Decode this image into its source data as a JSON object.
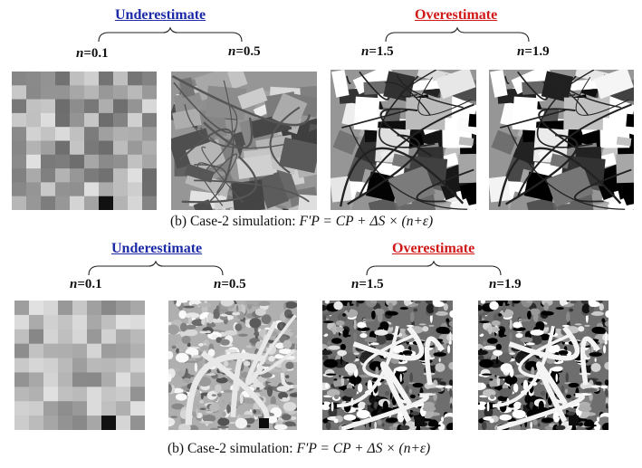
{
  "rows": [
    {
      "underestimate_label": "Underestimate",
      "overestimate_label": "Overestimate",
      "n_labels": [
        "0.1",
        "0.5",
        "1.5",
        "1.9"
      ],
      "caption_prefix": "(b) Case-2 simulation: ",
      "caption_formula_lhs": "F′P",
      "caption_formula_rhs": "= CP + ΔS × (n+ε)"
    },
    {
      "underestimate_label": "Underestimate",
      "overestimate_label": "Overestimate",
      "n_labels": [
        "0.1",
        "0.5",
        "1.5",
        "1.9"
      ],
      "caption_prefix": "(b) Case-2 simulation: ",
      "caption_formula_lhs": "F′P",
      "caption_formula_rhs": "= CP + ΔS × (n+ε)"
    }
  ],
  "n_symbol": "n",
  "colors": {
    "underestimate": "#1c2aa8",
    "overestimate": "#d01818"
  }
}
